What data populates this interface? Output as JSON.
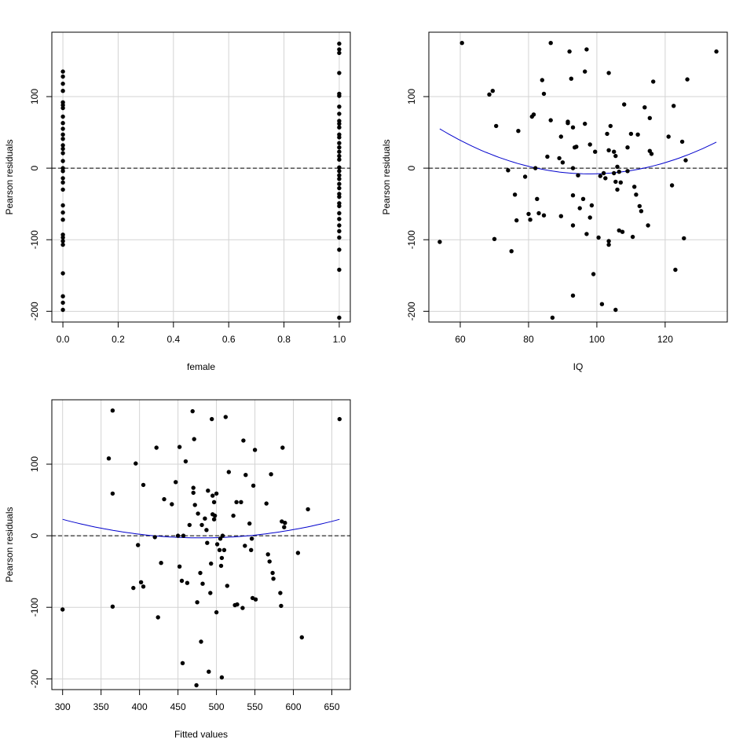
{
  "chart_data": [
    {
      "type": "scatter",
      "xlabel": "female",
      "ylabel": "Pearson residuals",
      "xlim": [
        -0.04,
        1.04
      ],
      "ylim": [
        -215,
        190
      ],
      "xticks": [
        0.0,
        0.2,
        0.4,
        0.6,
        0.8,
        1.0
      ],
      "xtick_labels": [
        "0.0",
        "0.2",
        "0.4",
        "0.6",
        "0.8",
        "1.0"
      ],
      "yticks": [
        -200,
        -100,
        0,
        100
      ],
      "ytick_labels": [
        "-200",
        "-100",
        "0",
        "100"
      ],
      "grid": true,
      "reference_line": 0,
      "points": [
        {
          "x": 0,
          "y": 135
        },
        {
          "x": 0,
          "y": 128
        },
        {
          "x": 0,
          "y": 118
        },
        {
          "x": 0,
          "y": 108
        },
        {
          "x": 0,
          "y": 92
        },
        {
          "x": 0,
          "y": 88
        },
        {
          "x": 0,
          "y": 84
        },
        {
          "x": 0,
          "y": 72
        },
        {
          "x": 0,
          "y": 63
        },
        {
          "x": 0,
          "y": 55
        },
        {
          "x": 0,
          "y": 47
        },
        {
          "x": 0,
          "y": 41
        },
        {
          "x": 0,
          "y": 32
        },
        {
          "x": 0,
          "y": 27
        },
        {
          "x": 0,
          "y": 21
        },
        {
          "x": 0,
          "y": 10
        },
        {
          "x": 0,
          "y": 0
        },
        {
          "x": 0,
          "y": -4
        },
        {
          "x": 0,
          "y": -14
        },
        {
          "x": 0,
          "y": -20
        },
        {
          "x": 0,
          "y": -30
        },
        {
          "x": 0,
          "y": -52
        },
        {
          "x": 0,
          "y": -62
        },
        {
          "x": 0,
          "y": -72
        },
        {
          "x": 0,
          "y": -93
        },
        {
          "x": 0,
          "y": -97
        },
        {
          "x": 0,
          "y": -102
        },
        {
          "x": 0,
          "y": -107
        },
        {
          "x": 0,
          "y": -147
        },
        {
          "x": 0,
          "y": -179
        },
        {
          "x": 0,
          "y": -188
        },
        {
          "x": 0,
          "y": -198
        },
        {
          "x": 1,
          "y": 174
        },
        {
          "x": 1,
          "y": 166
        },
        {
          "x": 1,
          "y": 161
        },
        {
          "x": 1,
          "y": 133
        },
        {
          "x": 1,
          "y": 104
        },
        {
          "x": 1,
          "y": 101
        },
        {
          "x": 1,
          "y": 86
        },
        {
          "x": 1,
          "y": 76
        },
        {
          "x": 1,
          "y": 66
        },
        {
          "x": 1,
          "y": 62
        },
        {
          "x": 1,
          "y": 57
        },
        {
          "x": 1,
          "y": 47
        },
        {
          "x": 1,
          "y": 43
        },
        {
          "x": 1,
          "y": 35
        },
        {
          "x": 1,
          "y": 29
        },
        {
          "x": 1,
          "y": 23
        },
        {
          "x": 1,
          "y": 17
        },
        {
          "x": 1,
          "y": 12
        },
        {
          "x": 1,
          "y": 1
        },
        {
          "x": 1,
          "y": -4
        },
        {
          "x": 1,
          "y": -10
        },
        {
          "x": 1,
          "y": -15
        },
        {
          "x": 1,
          "y": -22
        },
        {
          "x": 1,
          "y": -28
        },
        {
          "x": 1,
          "y": -36
        },
        {
          "x": 1,
          "y": -40
        },
        {
          "x": 1,
          "y": -49
        },
        {
          "x": 1,
          "y": -53
        },
        {
          "x": 1,
          "y": -63
        },
        {
          "x": 1,
          "y": -71
        },
        {
          "x": 1,
          "y": -80
        },
        {
          "x": 1,
          "y": -88
        },
        {
          "x": 1,
          "y": -97
        },
        {
          "x": 1,
          "y": -114
        },
        {
          "x": 1,
          "y": -142
        },
        {
          "x": 1,
          "y": -209
        }
      ]
    },
    {
      "type": "scatter",
      "xlabel": "IQ",
      "ylabel": "Pearson residuals",
      "xlim": [
        50.8,
        138.2
      ],
      "ylim": [
        -215,
        190
      ],
      "xticks": [
        60,
        80,
        100,
        120
      ],
      "xtick_labels": [
        "60",
        "80",
        "100",
        "120"
      ],
      "yticks": [
        -200,
        -100,
        0,
        100
      ],
      "ytick_labels": [
        "-200",
        "-100",
        "0",
        "100"
      ],
      "grid": true,
      "reference_line": 0,
      "smooth_curve": {
        "color": "#0000cc",
        "x_from": 54,
        "x_to": 135,
        "vertex_x": 98,
        "vertex_y": -8,
        "coef": 0.0325
      },
      "points": [
        {
          "x": 60.5,
          "y": 175
        },
        {
          "x": 54,
          "y": -103
        },
        {
          "x": 68.5,
          "y": 103
        },
        {
          "x": 69.5,
          "y": 108
        },
        {
          "x": 70,
          "y": -99
        },
        {
          "x": 70.5,
          "y": 59
        },
        {
          "x": 74,
          "y": -3
        },
        {
          "x": 75,
          "y": -116
        },
        {
          "x": 76,
          "y": -37
        },
        {
          "x": 76.5,
          "y": -73
        },
        {
          "x": 77,
          "y": 52
        },
        {
          "x": 79,
          "y": -12
        },
        {
          "x": 80,
          "y": -64
        },
        {
          "x": 80.5,
          "y": -72
        },
        {
          "x": 81,
          "y": 72
        },
        {
          "x": 81.5,
          "y": 75
        },
        {
          "x": 82,
          "y": 0
        },
        {
          "x": 82.5,
          "y": -43
        },
        {
          "x": 83,
          "y": -63
        },
        {
          "x": 84,
          "y": 123
        },
        {
          "x": 84.5,
          "y": 104
        },
        {
          "x": 84.5,
          "y": -66
        },
        {
          "x": 85.5,
          "y": 16
        },
        {
          "x": 86.5,
          "y": 175
        },
        {
          "x": 86.5,
          "y": 67
        },
        {
          "x": 87,
          "y": -209
        },
        {
          "x": 89,
          "y": 14
        },
        {
          "x": 89.5,
          "y": 44
        },
        {
          "x": 89.5,
          "y": -67
        },
        {
          "x": 90,
          "y": 8
        },
        {
          "x": 91.5,
          "y": 63
        },
        {
          "x": 91.5,
          "y": 65
        },
        {
          "x": 92.5,
          "y": 125
        },
        {
          "x": 92,
          "y": 163
        },
        {
          "x": 93,
          "y": -80
        },
        {
          "x": 93,
          "y": -178
        },
        {
          "x": 93,
          "y": 0
        },
        {
          "x": 93,
          "y": -38
        },
        {
          "x": 93,
          "y": 57
        },
        {
          "x": 93.5,
          "y": 29
        },
        {
          "x": 94,
          "y": 30
        },
        {
          "x": 94.5,
          "y": -10
        },
        {
          "x": 95,
          "y": -56
        },
        {
          "x": 96,
          "y": -43
        },
        {
          "x": 96.5,
          "y": 62
        },
        {
          "x": 96.5,
          "y": 135
        },
        {
          "x": 97,
          "y": 166
        },
        {
          "x": 97,
          "y": -92
        },
        {
          "x": 98,
          "y": -69
        },
        {
          "x": 98,
          "y": 33
        },
        {
          "x": 98.5,
          "y": -52
        },
        {
          "x": 99,
          "y": -148
        },
        {
          "x": 99.5,
          "y": 23
        },
        {
          "x": 100.5,
          "y": -97
        },
        {
          "x": 101,
          "y": -11
        },
        {
          "x": 101.5,
          "y": -190
        },
        {
          "x": 102,
          "y": -7
        },
        {
          "x": 102.5,
          "y": -14
        },
        {
          "x": 103,
          "y": 48
        },
        {
          "x": 103.5,
          "y": -102
        },
        {
          "x": 103.5,
          "y": -107
        },
        {
          "x": 103.5,
          "y": 25
        },
        {
          "x": 103.5,
          "y": 133
        },
        {
          "x": 104,
          "y": 59
        },
        {
          "x": 105,
          "y": -7
        },
        {
          "x": 105,
          "y": 23
        },
        {
          "x": 105.5,
          "y": 17
        },
        {
          "x": 105.5,
          "y": -198
        },
        {
          "x": 105.5,
          "y": -19
        },
        {
          "x": 106,
          "y": 2
        },
        {
          "x": 106,
          "y": -30
        },
        {
          "x": 106.5,
          "y": -87
        },
        {
          "x": 106.5,
          "y": -5
        },
        {
          "x": 107,
          "y": -20
        },
        {
          "x": 107.5,
          "y": -89
        },
        {
          "x": 108,
          "y": 89
        },
        {
          "x": 109,
          "y": 29
        },
        {
          "x": 109,
          "y": -4
        },
        {
          "x": 110,
          "y": 48
        },
        {
          "x": 110.5,
          "y": -96
        },
        {
          "x": 111,
          "y": -26
        },
        {
          "x": 111.5,
          "y": -37
        },
        {
          "x": 112,
          "y": 47
        },
        {
          "x": 112.5,
          "y": -53
        },
        {
          "x": 113,
          "y": -60
        },
        {
          "x": 114,
          "y": 85
        },
        {
          "x": 115,
          "y": -80
        },
        {
          "x": 115.5,
          "y": 70
        },
        {
          "x": 115.5,
          "y": 24
        },
        {
          "x": 116,
          "y": 20
        },
        {
          "x": 116.5,
          "y": 121
        },
        {
          "x": 121,
          "y": 44
        },
        {
          "x": 122,
          "y": -24
        },
        {
          "x": 122.5,
          "y": 87
        },
        {
          "x": 123,
          "y": -142
        },
        {
          "x": 125,
          "y": 37
        },
        {
          "x": 125.5,
          "y": -98
        },
        {
          "x": 126,
          "y": 11
        },
        {
          "x": 126.5,
          "y": 124
        },
        {
          "x": 135,
          "y": 163
        }
      ]
    },
    {
      "type": "scatter",
      "xlabel": "Fitted values",
      "ylabel": "Pearson residuals",
      "xlim": [
        286,
        674
      ],
      "ylim": [
        -215,
        190
      ],
      "xticks": [
        300,
        350,
        400,
        450,
        500,
        550,
        600,
        650
      ],
      "xtick_labels": [
        "300",
        "350",
        "400",
        "450",
        "500",
        "550",
        "600",
        "650"
      ],
      "yticks": [
        -200,
        -100,
        0,
        100
      ],
      "ytick_labels": [
        "-200",
        "-100",
        "0",
        "100"
      ],
      "grid": true,
      "reference_line": 0,
      "smooth_curve": {
        "color": "#0000cc",
        "x_from": 300,
        "x_to": 660,
        "vertex_x": 480,
        "vertex_y": -3,
        "coef": 0.0008
      },
      "points": [
        {
          "x": 300,
          "y": -103
        },
        {
          "x": 360,
          "y": 108
        },
        {
          "x": 365,
          "y": 175
        },
        {
          "x": 365,
          "y": 59
        },
        {
          "x": 365,
          "y": -99
        },
        {
          "x": 392,
          "y": -73
        },
        {
          "x": 395,
          "y": 101
        },
        {
          "x": 398,
          "y": -13
        },
        {
          "x": 402,
          "y": -65
        },
        {
          "x": 405,
          "y": -71
        },
        {
          "x": 405,
          "y": 71
        },
        {
          "x": 420,
          "y": -2
        },
        {
          "x": 422,
          "y": 123
        },
        {
          "x": 424,
          "y": -114
        },
        {
          "x": 428,
          "y": -38
        },
        {
          "x": 432,
          "y": 51
        },
        {
          "x": 442,
          "y": 44
        },
        {
          "x": 447,
          "y": 75
        },
        {
          "x": 450,
          "y": 0
        },
        {
          "x": 452,
          "y": -43
        },
        {
          "x": 452,
          "y": 124
        },
        {
          "x": 455,
          "y": -63
        },
        {
          "x": 456,
          "y": -178
        },
        {
          "x": 457,
          "y": 0
        },
        {
          "x": 460,
          "y": 104
        },
        {
          "x": 462,
          "y": -66
        },
        {
          "x": 465,
          "y": 15
        },
        {
          "x": 469,
          "y": 174
        },
        {
          "x": 470,
          "y": 60
        },
        {
          "x": 470,
          "y": 67
        },
        {
          "x": 471,
          "y": 135
        },
        {
          "x": 472,
          "y": 43
        },
        {
          "x": 474,
          "y": -209
        },
        {
          "x": 475,
          "y": -93
        },
        {
          "x": 476,
          "y": 31
        },
        {
          "x": 479,
          "y": -52
        },
        {
          "x": 480,
          "y": -148
        },
        {
          "x": 481,
          "y": 15
        },
        {
          "x": 482,
          "y": -67
        },
        {
          "x": 485,
          "y": 24
        },
        {
          "x": 487,
          "y": 8
        },
        {
          "x": 488,
          "y": -10
        },
        {
          "x": 489,
          "y": 63
        },
        {
          "x": 490,
          "y": -190
        },
        {
          "x": 492,
          "y": -80
        },
        {
          "x": 493,
          "y": -39
        },
        {
          "x": 494,
          "y": 163
        },
        {
          "x": 495,
          "y": 56
        },
        {
          "x": 495,
          "y": 30
        },
        {
          "x": 497,
          "y": 23
        },
        {
          "x": 497,
          "y": 47
        },
        {
          "x": 498,
          "y": 28
        },
        {
          "x": 500,
          "y": -107
        },
        {
          "x": 500,
          "y": 59
        },
        {
          "x": 501,
          "y": -12
        },
        {
          "x": 504,
          "y": -20
        },
        {
          "x": 505,
          "y": -4
        },
        {
          "x": 506,
          "y": -42
        },
        {
          "x": 507,
          "y": -198
        },
        {
          "x": 507,
          "y": -31
        },
        {
          "x": 508,
          "y": 0
        },
        {
          "x": 510,
          "y": -20
        },
        {
          "x": 512,
          "y": 166
        },
        {
          "x": 514,
          "y": -70
        },
        {
          "x": 516,
          "y": 89
        },
        {
          "x": 522,
          "y": 28
        },
        {
          "x": 524,
          "y": -97
        },
        {
          "x": 526,
          "y": 47
        },
        {
          "x": 527,
          "y": -96
        },
        {
          "x": 532,
          "y": 47
        },
        {
          "x": 534,
          "y": -101
        },
        {
          "x": 535,
          "y": 133
        },
        {
          "x": 537,
          "y": -14
        },
        {
          "x": 538,
          "y": 85
        },
        {
          "x": 543,
          "y": 17
        },
        {
          "x": 545,
          "y": -20
        },
        {
          "x": 546,
          "y": -4
        },
        {
          "x": 547,
          "y": -87
        },
        {
          "x": 548,
          "y": 70
        },
        {
          "x": 550,
          "y": 120
        },
        {
          "x": 551,
          "y": -89
        },
        {
          "x": 565,
          "y": 45
        },
        {
          "x": 567,
          "y": -26
        },
        {
          "x": 569,
          "y": -36
        },
        {
          "x": 571,
          "y": 86
        },
        {
          "x": 573,
          "y": -52
        },
        {
          "x": 574,
          "y": -60
        },
        {
          "x": 583,
          "y": -80
        },
        {
          "x": 584,
          "y": -98
        },
        {
          "x": 585,
          "y": 20
        },
        {
          "x": 586,
          "y": 123
        },
        {
          "x": 588,
          "y": 12
        },
        {
          "x": 589,
          "y": 18
        },
        {
          "x": 606,
          "y": -24
        },
        {
          "x": 611,
          "y": -142
        },
        {
          "x": 619,
          "y": 37
        },
        {
          "x": 660,
          "y": 163
        }
      ]
    }
  ]
}
